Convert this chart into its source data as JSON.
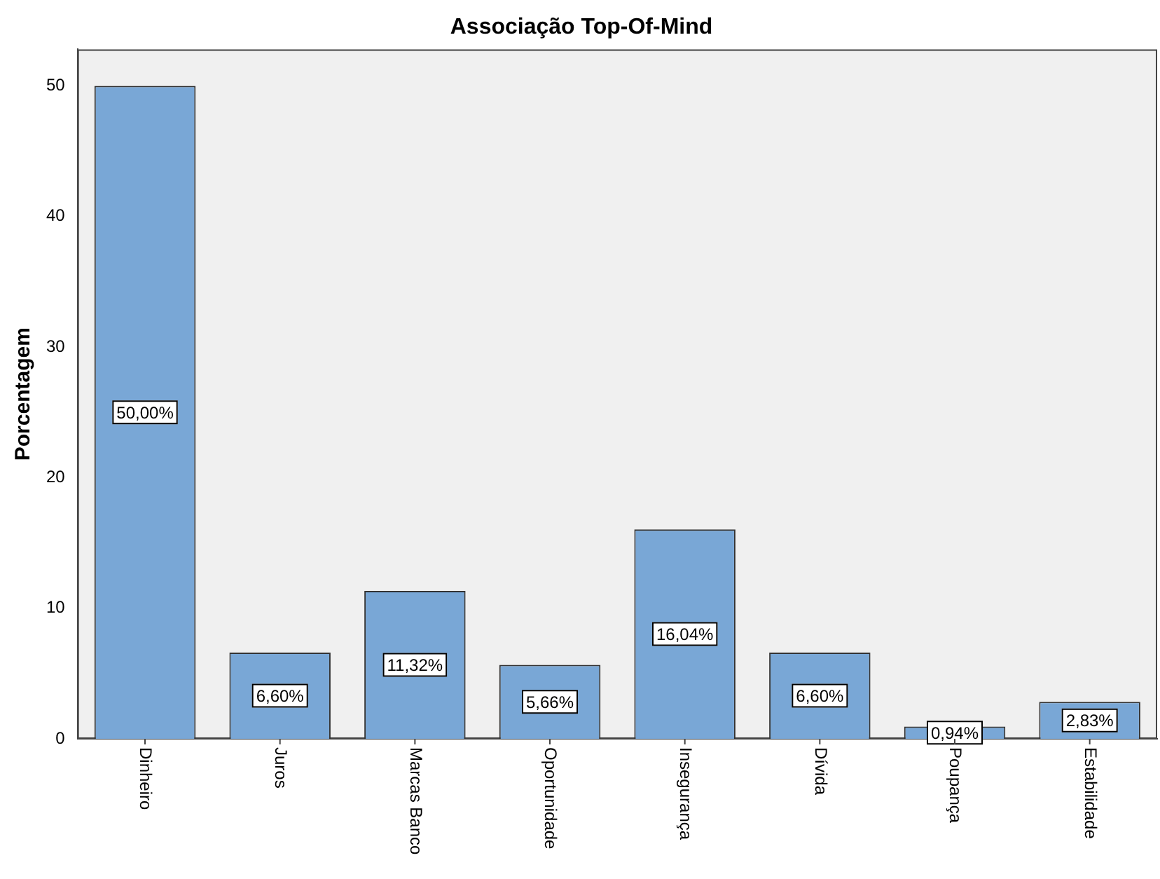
{
  "chart_data": {
    "type": "bar",
    "title": "Associação Top-Of-Mind",
    "ylabel": "Porcentagem",
    "categories": [
      "Dinheiro",
      "Juros",
      "Marcas Banco",
      "Oportunidade",
      "Insegurança",
      "Dívida",
      "Poupança",
      "Estabilidade"
    ],
    "values": [
      50.0,
      6.6,
      11.32,
      5.66,
      16.04,
      6.6,
      0.94,
      2.83
    ],
    "value_labels": [
      "50,00%",
      "6,60%",
      "11,32%",
      "5,66%",
      "16,04%",
      "6,60%",
      "0,94%",
      "2,83%"
    ],
    "color": "#79a7d6",
    "ylim": [
      0,
      52.8
    ],
    "yticks": [
      0,
      10,
      20,
      30,
      40,
      50
    ],
    "grid": false,
    "legend": false
  }
}
